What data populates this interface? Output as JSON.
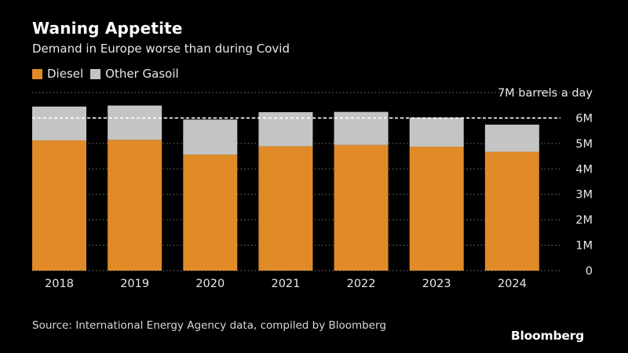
{
  "title": "Waning Appetite",
  "subtitle": "Demand in Europe worse than during Covid",
  "source": "Source: International Energy Agency data, compiled by Bloomberg",
  "logo": "Bloomberg",
  "chart_data": {
    "type": "bar",
    "stacked": true,
    "categories": [
      "2018",
      "2019",
      "2020",
      "2021",
      "2022",
      "2023",
      "2024"
    ],
    "series": [
      {
        "name": "Diesel",
        "color": "#e08b28",
        "values": [
          5.12,
          5.14,
          4.56,
          4.89,
          4.94,
          4.87,
          4.67
        ]
      },
      {
        "name": "Other Gasoil",
        "color": "#c4c4c4",
        "values": [
          1.33,
          1.35,
          1.38,
          1.34,
          1.3,
          1.15,
          1.07
        ]
      }
    ],
    "ylim": [
      0,
      7
    ],
    "yticks": [
      {
        "value": 0,
        "label": "0"
      },
      {
        "value": 1,
        "label": "1M"
      },
      {
        "value": 2,
        "label": "2M"
      },
      {
        "value": 3,
        "label": "3M"
      },
      {
        "value": 4,
        "label": "4M"
      },
      {
        "value": 5,
        "label": "5M"
      },
      {
        "value": 6,
        "label": "6M"
      },
      {
        "value": 7,
        "label": "7M barrels a day"
      }
    ],
    "reference_line": {
      "value": 6,
      "style": "dashed",
      "color": "#ffffff"
    },
    "grid": true,
    "legend_position": "top-left"
  }
}
